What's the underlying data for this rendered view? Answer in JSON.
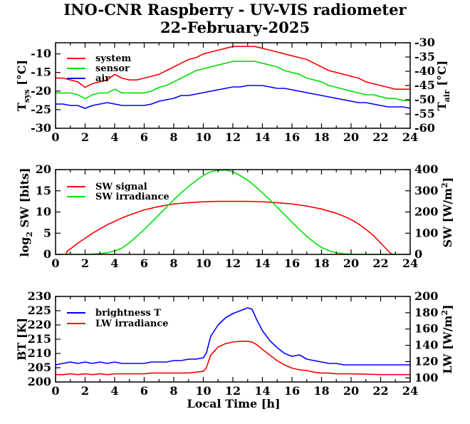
{
  "title": "INO-CNR Raspberry - UV-VIS radiometer",
  "subtitle": "22-February-2025",
  "xlabel": "Local Time [h]",
  "colors": {
    "red": "#ff0000",
    "green": "#00e000",
    "blue": "#0000ff"
  },
  "chart_data": [
    {
      "type": "line",
      "id": "temperature",
      "ylabel_left": "T_sys [°C]",
      "ylabel_right": "T_air [°C]",
      "xlim": [
        0,
        24
      ],
      "ylim_left": [
        -30,
        -7
      ],
      "ylim_right": [
        -60,
        -30
      ],
      "xticks": [
        0,
        2,
        4,
        6,
        8,
        10,
        12,
        14,
        16,
        18,
        20,
        22,
        24
      ],
      "yticks_left": [
        -30,
        -25,
        -20,
        -15,
        -10
      ],
      "yticks_right": [
        -60,
        -55,
        -50,
        -45,
        -40,
        -35,
        -30
      ],
      "series": [
        {
          "name": "system",
          "color": "#ff0000",
          "axis": "left",
          "x": [
            0,
            0.5,
            1,
            1.5,
            2,
            2.5,
            3,
            3.5,
            4,
            4.5,
            5,
            5.5,
            6,
            6.5,
            7,
            7.5,
            8,
            8.5,
            9,
            9.5,
            10,
            10.5,
            11,
            11.5,
            12,
            12.5,
            13,
            13.5,
            14,
            14.5,
            15,
            15.5,
            16,
            16.5,
            17,
            17.5,
            18,
            18.5,
            19,
            19.5,
            20,
            20.5,
            21,
            21.5,
            22,
            22.5,
            23,
            23.5,
            24
          ],
          "y": [
            -16.5,
            -16.5,
            -17,
            -17.5,
            -19,
            -18,
            -17.5,
            -17,
            -15.5,
            -16.5,
            -17,
            -17,
            -16.5,
            -16,
            -15.5,
            -14.5,
            -13.5,
            -12.5,
            -11.5,
            -11,
            -10,
            -9.5,
            -9,
            -8.5,
            -8,
            -8,
            -8,
            -8,
            -8.5,
            -9,
            -9.5,
            -10,
            -10.5,
            -11,
            -11.5,
            -12.5,
            -13.5,
            -14.5,
            -15,
            -15.5,
            -16,
            -16.5,
            -17.5,
            -18,
            -18.5,
            -19,
            -19.5,
            -19.5,
            -19.5
          ]
        },
        {
          "name": "sensor",
          "color": "#00e000",
          "axis": "left",
          "x": [
            0,
            0.5,
            1,
            1.5,
            2,
            2.5,
            3,
            3.5,
            4,
            4.5,
            5,
            5.5,
            6,
            6.5,
            7,
            7.5,
            8,
            8.5,
            9,
            9.5,
            10,
            10.5,
            11,
            11.5,
            12,
            12.5,
            13,
            13.5,
            14,
            14.5,
            15,
            15.5,
            16,
            16.5,
            17,
            17.5,
            18,
            18.5,
            19,
            19.5,
            20,
            20.5,
            21,
            21.5,
            22,
            22.5,
            23,
            23.5,
            24
          ],
          "y": [
            -20.5,
            -20.5,
            -20.5,
            -21,
            -22,
            -21,
            -20.5,
            -20.5,
            -19.5,
            -20.5,
            -20.5,
            -20.5,
            -20.5,
            -20,
            -19,
            -18.5,
            -17.5,
            -16.5,
            -15.5,
            -14.5,
            -14,
            -13.5,
            -13,
            -12.5,
            -12,
            -12,
            -12,
            -12,
            -12.5,
            -13,
            -13.5,
            -14.5,
            -15,
            -15.5,
            -16.5,
            -17,
            -17.5,
            -18.5,
            -19,
            -19.5,
            -20,
            -20.5,
            -21,
            -21,
            -21.5,
            -22,
            -22,
            -22.5,
            -22.5
          ]
        },
        {
          "name": "air",
          "color": "#0000ff",
          "axis": "right",
          "x": [
            0,
            0.5,
            1,
            1.5,
            2,
            2.5,
            3,
            3.5,
            4,
            4.5,
            5,
            5.5,
            6,
            6.5,
            7,
            7.5,
            8,
            8.5,
            9,
            9.5,
            10,
            10.5,
            11,
            11.5,
            12,
            12.5,
            13,
            13.5,
            14,
            14.5,
            15,
            15.5,
            16,
            16.5,
            17,
            17.5,
            18,
            18.5,
            19,
            19.5,
            20,
            20.5,
            21,
            21.5,
            22,
            22.5,
            23,
            23.5,
            24
          ],
          "y": [
            -51.5,
            -51.5,
            -52,
            -52,
            -53,
            -52,
            -51.5,
            -51,
            -51.5,
            -52,
            -52,
            -52,
            -52,
            -51.5,
            -50.5,
            -50,
            -49.5,
            -48.5,
            -48.5,
            -48,
            -47.5,
            -47,
            -46.5,
            -46,
            -45.5,
            -45.5,
            -45,
            -45,
            -45,
            -45.5,
            -46,
            -46,
            -46.5,
            -47,
            -47.5,
            -48,
            -48.5,
            -49,
            -49.5,
            -50,
            -50.5,
            -51,
            -51,
            -51.5,
            -52,
            -52.5,
            -52.5,
            -52.5,
            -53
          ]
        }
      ]
    },
    {
      "type": "line",
      "id": "shortwave",
      "ylabel_left": "log2 SW [bits]",
      "ylabel_right": "SW [W/m2]",
      "xlim": [
        0,
        24
      ],
      "ylim_left": [
        0,
        20
      ],
      "ylim_right": [
        0,
        400
      ],
      "xticks": [
        0,
        2,
        4,
        6,
        8,
        10,
        12,
        14,
        16,
        18,
        20,
        22,
        24
      ],
      "yticks_left": [
        0,
        5,
        10,
        15,
        20
      ],
      "yticks_right": [
        0,
        100,
        200,
        300,
        400
      ],
      "series": [
        {
          "name": "SW signal",
          "color": "#ff0000",
          "axis": "left",
          "x": [
            0.7,
            0.8,
            1,
            1.5,
            2,
            2.5,
            3,
            3.5,
            4,
            4.5,
            5,
            5.5,
            6,
            7,
            8,
            9,
            10,
            11,
            12,
            13,
            14,
            15,
            16,
            17,
            18,
            18.5,
            19,
            19.5,
            20,
            20.5,
            21,
            21.5,
            22,
            22.3,
            22.6,
            22.8,
            23
          ],
          "y": [
            0,
            0.8,
            1.3,
            2.6,
            3.8,
            5,
            6,
            7,
            7.8,
            8.6,
            9.3,
            9.9,
            10.5,
            11.3,
            11.9,
            12.2,
            12.4,
            12.5,
            12.5,
            12.5,
            12.4,
            12.2,
            11.9,
            11.4,
            10.7,
            10.2,
            9.7,
            9,
            8.2,
            7.2,
            5.9,
            4.5,
            2.7,
            1.6,
            0.5,
            0,
            0
          ]
        },
        {
          "name": "SW irradiance",
          "color": "#00e000",
          "axis": "right",
          "x": [
            0,
            2,
            3,
            3.5,
            4,
            4.5,
            5,
            5.5,
            6,
            6.5,
            7,
            7.5,
            8,
            8.5,
            9,
            9.5,
            10,
            10.5,
            11,
            11.5,
            12,
            12.5,
            13,
            13.5,
            14,
            14.5,
            15,
            15.5,
            16,
            16.5,
            17,
            17.5,
            18,
            18.5,
            19,
            19.5,
            20,
            20.5,
            21,
            22,
            24
          ],
          "y": [
            0,
            0,
            3,
            8,
            16,
            30,
            55,
            85,
            118,
            152,
            188,
            222,
            258,
            290,
            320,
            348,
            372,
            390,
            397,
            398,
            390,
            372,
            350,
            322,
            290,
            258,
            222,
            188,
            152,
            118,
            85,
            57,
            33,
            17,
            8,
            3,
            1,
            0,
            0,
            0,
            0
          ]
        }
      ]
    },
    {
      "type": "line",
      "id": "longwave",
      "ylabel_left": "BT [K]",
      "ylabel_right": "LW [W/m2]",
      "xlim": [
        0,
        24
      ],
      "ylim_left": [
        200,
        230
      ],
      "ylim_right": [
        95,
        200
      ],
      "xticks": [
        0,
        2,
        4,
        6,
        8,
        10,
        12,
        14,
        16,
        18,
        20,
        22,
        24
      ],
      "yticks_left": [
        200,
        205,
        210,
        215,
        220,
        225,
        230
      ],
      "yticks_right": [
        100,
        120,
        140,
        160,
        180,
        200
      ],
      "series": [
        {
          "name": "brightness T",
          "color": "#0000ff",
          "axis": "left",
          "x": [
            0,
            0.5,
            1,
            1.5,
            2,
            2.5,
            3,
            3.5,
            4,
            4.5,
            5,
            5.5,
            6,
            6.5,
            7,
            7.5,
            8,
            8.5,
            9,
            9.5,
            10,
            10.2,
            10.5,
            11,
            11.5,
            12,
            12.5,
            13,
            13.3,
            13.6,
            14,
            14.5,
            15,
            15.5,
            16,
            16.5,
            17,
            17.5,
            18,
            18.5,
            19,
            19.5,
            20,
            21,
            22,
            23,
            24
          ],
          "y": [
            206,
            206.5,
            207,
            206.5,
            207,
            206.5,
            207,
            206.5,
            207,
            206.5,
            206.5,
            206.5,
            206.5,
            207,
            207,
            207,
            207.5,
            207.5,
            208,
            208,
            208.5,
            210,
            216,
            220,
            222.5,
            224,
            225,
            226,
            225.5,
            222,
            218,
            214.5,
            212,
            210,
            209,
            209.5,
            208,
            207.5,
            207,
            206.5,
            206.5,
            206,
            206,
            206,
            206,
            206,
            206
          ]
        },
        {
          "name": "LW irradiance",
          "color": "#ff0000",
          "axis": "right",
          "x": [
            0,
            0.5,
            1,
            1.5,
            2,
            2.5,
            3,
            3.5,
            4,
            4.5,
            5,
            5.5,
            6,
            6.5,
            7,
            7.5,
            8,
            8.5,
            9,
            9.5,
            10,
            10.2,
            10.5,
            11,
            11.5,
            12,
            12.5,
            13,
            13.3,
            13.6,
            14,
            14.5,
            15,
            15.5,
            16,
            16.5,
            17,
            17.5,
            18,
            18.5,
            19,
            19.5,
            20,
            21,
            22,
            23,
            24
          ],
          "y": [
            104,
            104,
            105,
            104,
            105,
            104,
            105,
            104,
            105,
            105,
            105,
            105,
            105,
            106,
            106,
            106,
            106,
            106,
            106,
            107,
            108,
            112,
            128,
            138,
            142,
            144,
            145,
            145,
            144,
            141,
            135,
            128,
            121,
            116,
            112,
            110,
            109,
            107,
            106,
            106,
            105,
            105,
            105,
            104.5,
            104,
            104,
            104
          ]
        }
      ]
    }
  ],
  "legends": {
    "temperature": [
      "system",
      "sensor",
      "air"
    ],
    "shortwave": [
      "SW signal",
      "SW irradiance"
    ],
    "longwave": [
      "brightness T",
      "LW irradiance"
    ]
  }
}
